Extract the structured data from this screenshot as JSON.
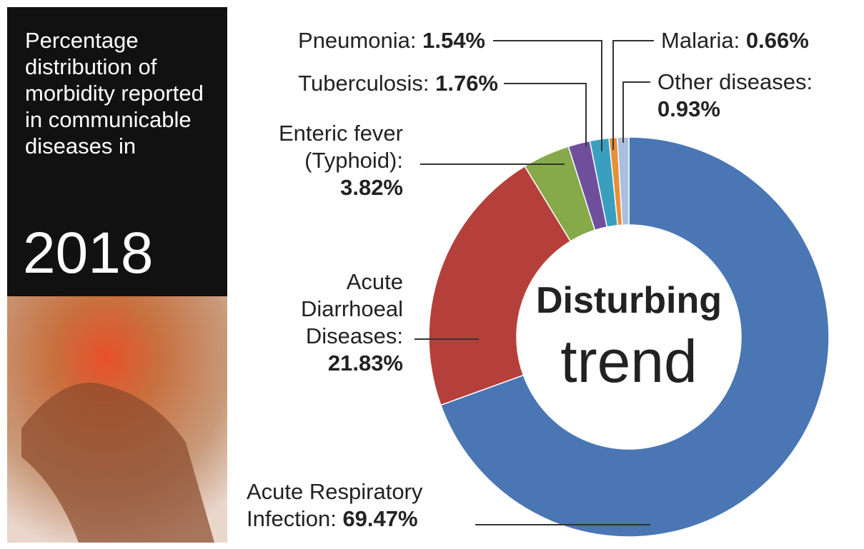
{
  "chart_data": {
    "type": "donut",
    "title": "Percentage distribution of morbidity reported in communicable diseases in",
    "subtitle": "2018",
    "center_text": [
      "Disturbing",
      "trend"
    ],
    "categories": [
      "Acute Respiratory Infection:",
      "Acute Diarrhoeal Diseases:",
      "Enteric fever (Typhoid):",
      "Tuberculosis:",
      "Pneumonia:",
      "Malaria:",
      "Other diseases:"
    ],
    "values": [
      69.47,
      21.83,
      3.82,
      1.76,
      1.54,
      0.66,
      0.93
    ],
    "value_labels": [
      "69.47%",
      "21.83%",
      "3.82%",
      "1.76%",
      "1.54%",
      "0.66%",
      "0.93%"
    ],
    "colors": [
      "#4a76b4",
      "#b5403b",
      "#86a94a",
      "#6f4f9c",
      "#3a9fbe",
      "#e7903a",
      "#a9bfe0"
    ]
  }
}
